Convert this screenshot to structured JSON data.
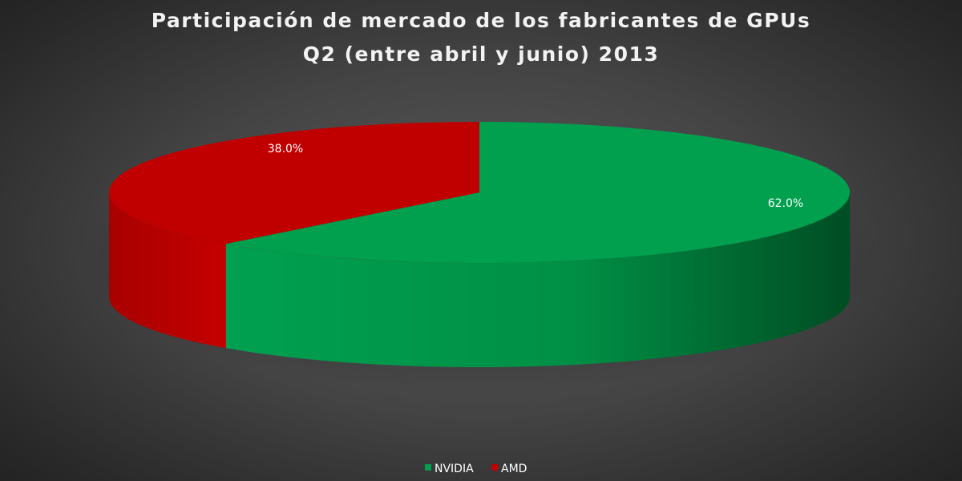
{
  "chart_data": {
    "type": "pie",
    "title_lines": [
      "Participación de mercado de los fabricantes de GPUs",
      "Q2 (entre abril y junio) 2013"
    ],
    "categories": [
      "NVIDIA",
      "AMD"
    ],
    "values": [
      62.0,
      38.0
    ],
    "value_labels": [
      "62.0%",
      "38.0%"
    ],
    "colors": [
      "#00A04E",
      "#C00000"
    ],
    "legend_position": "bottom",
    "style": "3d"
  }
}
